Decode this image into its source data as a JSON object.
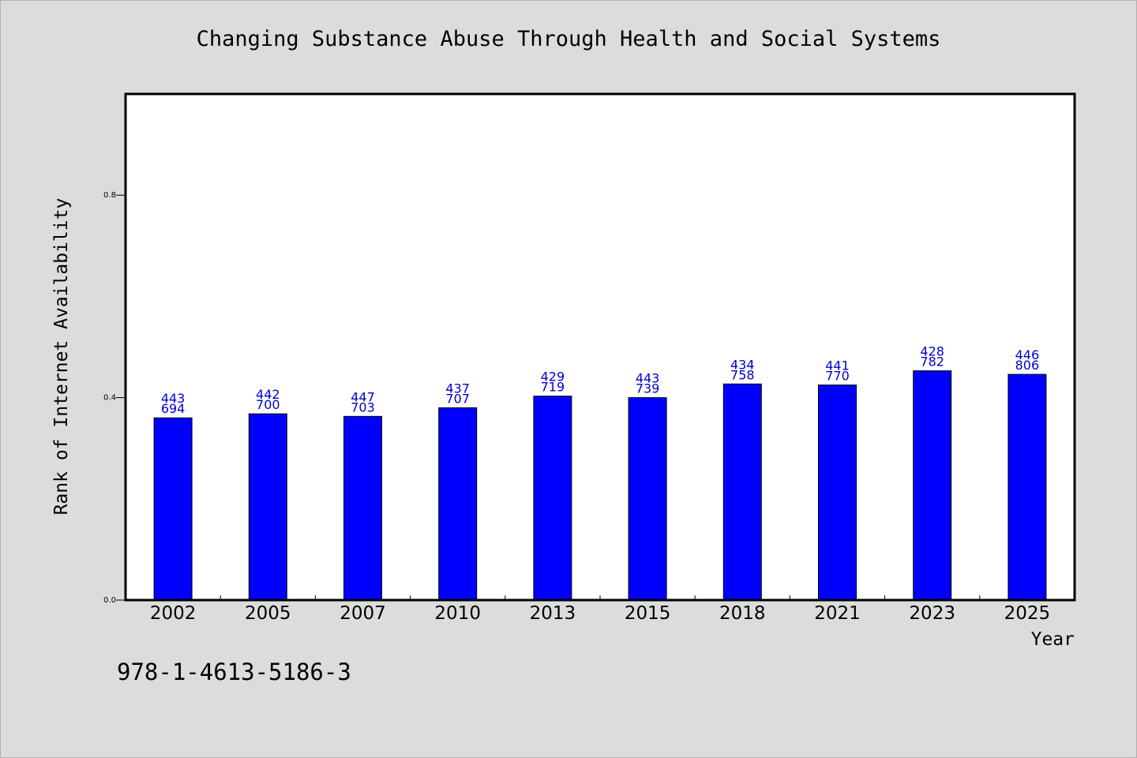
{
  "page": {
    "footer_id": "978-1-4613-5186-3"
  },
  "chart_data": {
    "type": "bar",
    "title": "Changing Substance Abuse Through Health and Social Systems",
    "xlabel": "Year",
    "ylabel": "Rank of Internet Availability",
    "categories": [
      "2002",
      "2005",
      "2007",
      "2010",
      "2013",
      "2015",
      "2018",
      "2021",
      "2023",
      "2025"
    ],
    "values": [
      0.36,
      0.368,
      0.363,
      0.38,
      0.403,
      0.4,
      0.427,
      0.425,
      0.453,
      0.446
    ],
    "data_labels": [
      [
        "443",
        "694"
      ],
      [
        "442",
        "700"
      ],
      [
        "447",
        "703"
      ],
      [
        "437",
        "707"
      ],
      [
        "429",
        "719"
      ],
      [
        "443",
        "739"
      ],
      [
        "434",
        "758"
      ],
      [
        "441",
        "770"
      ],
      [
        "428",
        "782"
      ],
      [
        "446",
        "806"
      ]
    ],
    "ylim": [
      0,
      1.0
    ],
    "yticks": [
      0.0,
      0.4,
      0.8
    ],
    "ytick_labels": [
      "0.0",
      "0.4",
      "0.8"
    ],
    "grid": false,
    "bar_color": "#0000ff",
    "label_color": "#0000cc",
    "background": "#dcdcdc",
    "plot_background": "#ffffff"
  }
}
